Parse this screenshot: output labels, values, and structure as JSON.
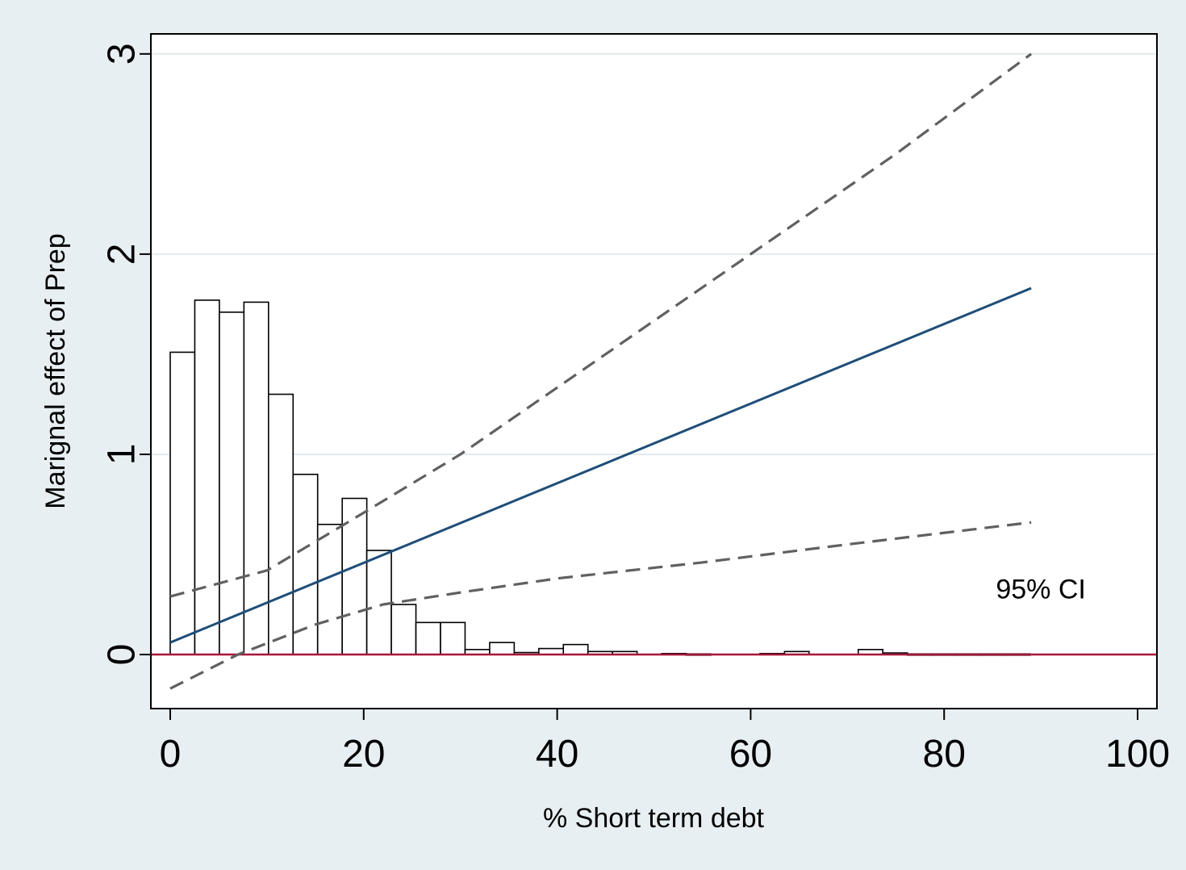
{
  "chart_data": {
    "type": "bar",
    "xlabel": "% Short term debt",
    "ylabel": "Marignal effect of Prep",
    "xlim": [
      -2,
      102
    ],
    "ylim": [
      -0.27,
      3.1
    ],
    "x_ticks": [
      0,
      20,
      40,
      60,
      80,
      100
    ],
    "y_ticks": [
      0,
      1,
      2,
      3
    ],
    "grid": "horizontal",
    "colors": {
      "background": "#e8eff2",
      "plot_background": "#ffffff",
      "bar_fill": "#ffffff",
      "bar_edge": "#000000",
      "marginal_effect_line": "#1e4d78",
      "ci_line": "#606060",
      "reference_line": "#a8163a",
      "grid": "#e2ebee"
    },
    "histogram": {
      "bin_width": 2.54,
      "bins": [
        {
          "x0": 0.0,
          "height": 1.51
        },
        {
          "x0": 2.54,
          "height": 1.77
        },
        {
          "x0": 5.08,
          "height": 1.71
        },
        {
          "x0": 7.62,
          "height": 1.76
        },
        {
          "x0": 10.16,
          "height": 1.3
        },
        {
          "x0": 12.7,
          "height": 0.9
        },
        {
          "x0": 15.24,
          "height": 0.65
        },
        {
          "x0": 17.78,
          "height": 0.78
        },
        {
          "x0": 20.32,
          "height": 0.52
        },
        {
          "x0": 22.86,
          "height": 0.25
        },
        {
          "x0": 25.4,
          "height": 0.16
        },
        {
          "x0": 27.94,
          "height": 0.16
        },
        {
          "x0": 30.48,
          "height": 0.025
        },
        {
          "x0": 33.02,
          "height": 0.06
        },
        {
          "x0": 35.56,
          "height": 0.01
        },
        {
          "x0": 38.1,
          "height": 0.03
        },
        {
          "x0": 40.64,
          "height": 0.05
        },
        {
          "x0": 43.18,
          "height": 0.015
        },
        {
          "x0": 45.72,
          "height": 0.015
        },
        {
          "x0": 50.8,
          "height": 0.005
        },
        {
          "x0": 53.34,
          "height": 0.003
        },
        {
          "x0": 60.96,
          "height": 0.005
        },
        {
          "x0": 63.5,
          "height": 0.015
        },
        {
          "x0": 71.12,
          "height": 0.025
        },
        {
          "x0": 73.66,
          "height": 0.008
        },
        {
          "x0": 76.2,
          "height": 0.003
        },
        {
          "x0": 78.74,
          "height": 0.003
        },
        {
          "x0": 81.28,
          "height": 0.003
        },
        {
          "x0": 83.82,
          "height": 0.003
        },
        {
          "x0": 86.36,
          "height": 0.003
        }
      ]
    },
    "series": [
      {
        "x": [
          0,
          89
        ],
        "y": [
          0.06,
          1.83
        ]
      },
      {
        "x": [
          0,
          10,
          18,
          30,
          45,
          60,
          75,
          89
        ],
        "y": [
          0.29,
          0.42,
          0.65,
          1.0,
          1.5,
          2.0,
          2.5,
          3.0
        ]
      },
      {
        "x": [
          0,
          7,
          15,
          22,
          30,
          40,
          55,
          70,
          89
        ],
        "y": [
          -0.17,
          0.0,
          0.15,
          0.25,
          0.31,
          0.38,
          0.46,
          0.55,
          0.66
        ]
      }
    ],
    "reference_line": {
      "y": 0
    },
    "annotation": {
      "text": "95% CI",
      "x": 90,
      "y": 0.28
    }
  }
}
